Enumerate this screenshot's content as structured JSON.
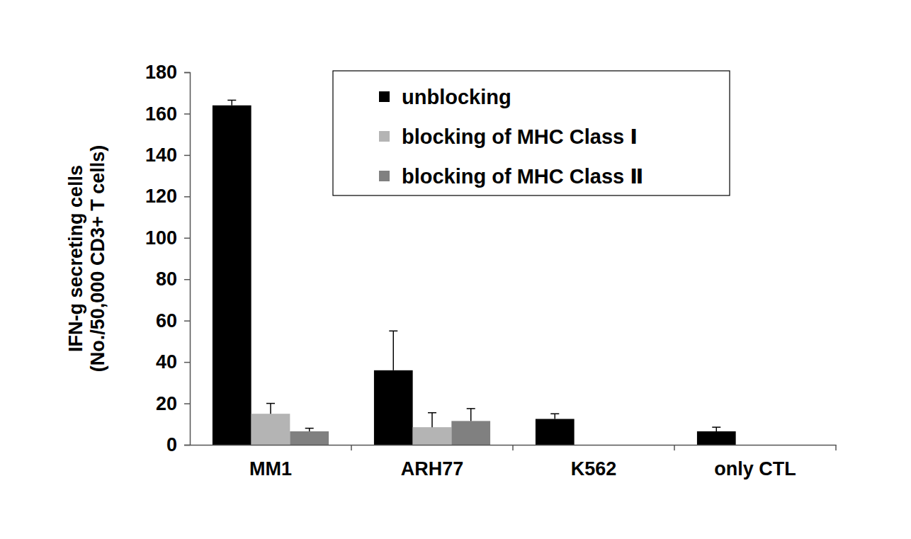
{
  "chart_data": {
    "type": "bar",
    "y_label": [
      "IFN-g secreting cells",
      "(No./50,000 CD3+ T cells)"
    ],
    "categories": [
      "MM1",
      "ARH77",
      "K562",
      "only CTL"
    ],
    "series": [
      {
        "name": "unblocking",
        "color": "#000000",
        "values": [
          164,
          36,
          12.5,
          6.5
        ],
        "errors": [
          2.5,
          19,
          2.5,
          2
        ]
      },
      {
        "name": "blocking of MHC Class Ⅰ",
        "color": "#b4b4b4",
        "values": [
          15,
          8.5,
          null,
          null
        ],
        "errors": [
          5,
          7,
          null,
          null
        ]
      },
      {
        "name": "blocking of MHC Class Ⅱ",
        "color": "#808080",
        "values": [
          6.5,
          11.5,
          null,
          null
        ],
        "errors": [
          1.5,
          6,
          null,
          null
        ]
      }
    ],
    "ylim": [
      0,
      180
    ],
    "yticks": [
      0,
      20,
      40,
      60,
      80,
      100,
      120,
      140,
      160,
      180
    ],
    "legend": "top-right",
    "grid": false
  }
}
